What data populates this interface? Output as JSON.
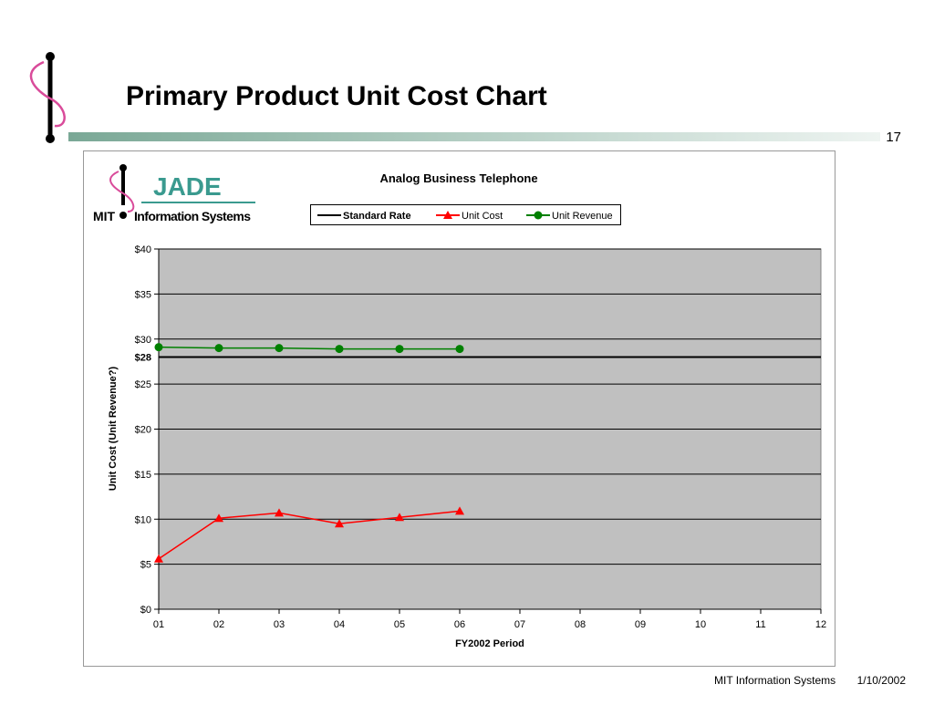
{
  "slide": {
    "title": "Primary Product Unit Cost Chart",
    "page_number": "17",
    "footer": {
      "org": "MIT Information Systems",
      "date": "1/10/2002"
    }
  },
  "logo": {
    "name": "JADE",
    "org": "MIT",
    "unit": "Information Systems"
  },
  "chart_data": {
    "type": "line",
    "title": "Analog Business Telephone",
    "x_label": "FY2002 Period",
    "y_label": "Unit Cost (Unit Revenue?)",
    "categories": [
      "01",
      "02",
      "03",
      "04",
      "05",
      "06",
      "07",
      "08",
      "09",
      "10",
      "11",
      "12"
    ],
    "series": [
      {
        "name": "Standard Rate",
        "color": "#000000",
        "marker": "none",
        "values": [
          28,
          28,
          28,
          28,
          28,
          28,
          28,
          28,
          28,
          28,
          28,
          28
        ]
      },
      {
        "name": "Unit Cost",
        "color": "#ff0000",
        "marker": "triangle",
        "values": [
          5.6,
          10.1,
          10.7,
          9.5,
          10.2,
          10.9,
          null,
          null,
          null,
          null,
          null,
          null
        ]
      },
      {
        "name": "Unit Revenue",
        "color": "#008000",
        "marker": "circle",
        "values": [
          29.1,
          29.0,
          29.0,
          28.9,
          28.9,
          28.9,
          null,
          null,
          null,
          null,
          null,
          null
        ]
      }
    ],
    "ylim": [
      0,
      40
    ],
    "yticks": [
      {
        "value": 0,
        "label": "$0"
      },
      {
        "value": 5,
        "label": "$5"
      },
      {
        "value": 10,
        "label": "$10"
      },
      {
        "value": 15,
        "label": "$15"
      },
      {
        "value": 20,
        "label": "$20"
      },
      {
        "value": 25,
        "label": "$25"
      },
      {
        "value": 30,
        "label": "$30"
      },
      {
        "value": 35,
        "label": "$35"
      },
      {
        "value": 40,
        "label": "$40"
      }
    ],
    "reference_tick": {
      "value": 28,
      "label": "$28"
    },
    "grid": true,
    "plot_background": "#c0c0c0",
    "legend": "top"
  }
}
